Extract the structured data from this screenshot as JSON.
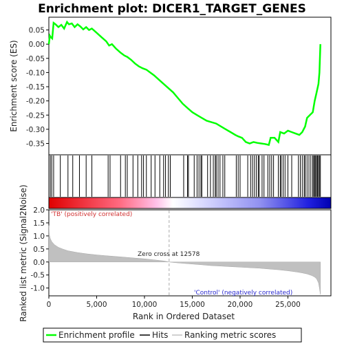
{
  "chart_data": {
    "type": "line",
    "title": "Enrichment plot: DICER1_TARGET_GENES",
    "xlabel": "Rank in Ordered Dataset",
    "xlim": [
      0,
      29500
    ],
    "x_ticks": [
      0,
      5000,
      10000,
      15000,
      20000,
      25000
    ],
    "x_tick_labels": [
      "0",
      "5,000",
      "10,000",
      "15,000",
      "20,000",
      "25,000"
    ],
    "es_panel": {
      "ylabel": "Enrichment score (ES)",
      "ylim": [
        -0.39,
        0.095
      ],
      "y_ticks": [
        0.05,
        0.0,
        -0.05,
        -0.1,
        -0.15,
        -0.2,
        -0.25,
        -0.3,
        -0.35
      ],
      "y_tick_labels": [
        "0.05",
        "0.00",
        "-0.05",
        "-0.10",
        "-0.15",
        "-0.20",
        "-0.25",
        "-0.30",
        "-0.35"
      ],
      "series_name": "Enrichment profile",
      "color": "#00ff00",
      "x": [
        0,
        100,
        200,
        350,
        500,
        700,
        1000,
        1300,
        1600,
        1900,
        2100,
        2400,
        2700,
        3000,
        3300,
        3600,
        3900,
        4200,
        4500,
        5000,
        5500,
        6000,
        6300,
        6600,
        7000,
        7500,
        7900,
        8200,
        8600,
        9000,
        9400,
        9800,
        10200,
        10600,
        11000,
        11500,
        12000,
        12500,
        13000,
        13500,
        14000,
        14500,
        15000,
        15500,
        16000,
        16500,
        17000,
        17500,
        18000,
        18500,
        19000,
        19500,
        19800,
        20200,
        20600,
        21000,
        21400,
        21800,
        22200,
        22600,
        23000,
        23200,
        23600,
        24000,
        24200,
        24600,
        25000,
        25400,
        25800,
        26200,
        26500,
        26800,
        27000,
        27300,
        27600,
        27800,
        28000,
        28200,
        28300,
        28400
      ],
      "y": [
        0.0,
        0.03,
        0.025,
        0.02,
        0.075,
        0.07,
        0.06,
        0.068,
        0.055,
        0.078,
        0.07,
        0.073,
        0.06,
        0.07,
        0.062,
        0.052,
        0.06,
        0.05,
        0.055,
        0.04,
        0.025,
        0.01,
        -0.005,
        0.0,
        -0.015,
        -0.03,
        -0.04,
        -0.045,
        -0.055,
        -0.068,
        -0.078,
        -0.085,
        -0.09,
        -0.1,
        -0.11,
        -0.125,
        -0.14,
        -0.155,
        -0.17,
        -0.19,
        -0.21,
        -0.225,
        -0.24,
        -0.25,
        -0.26,
        -0.27,
        -0.275,
        -0.28,
        -0.29,
        -0.3,
        -0.31,
        -0.32,
        -0.325,
        -0.33,
        -0.345,
        -0.35,
        -0.345,
        -0.348,
        -0.35,
        -0.352,
        -0.355,
        -0.33,
        -0.33,
        -0.345,
        -0.31,
        -0.315,
        -0.305,
        -0.31,
        -0.315,
        -0.32,
        -0.31,
        -0.29,
        -0.26,
        -0.25,
        -0.24,
        -0.2,
        -0.17,
        -0.14,
        -0.1,
        0.0
      ]
    },
    "hits_panel": {
      "series_name": "Hits",
      "hit_positions": [
        150,
        300,
        500,
        1200,
        2000,
        2500,
        3200,
        3900,
        4500,
        6200,
        6400,
        7500,
        8000,
        8200,
        8800,
        9300,
        9700,
        9900,
        10200,
        10700,
        11100,
        11600,
        12000,
        12200,
        12500,
        12700,
        14100,
        14500,
        14600,
        15200,
        15500,
        15700,
        15900,
        16000,
        16600,
        16900,
        17200,
        17400,
        17500,
        17700,
        17900,
        18200,
        18400,
        19600,
        19800,
        20000,
        20800,
        21100,
        21300,
        21500,
        21700,
        21900,
        22000,
        22300,
        22500,
        22900,
        23100,
        23300,
        23500,
        24000,
        24200,
        24300,
        24500,
        24700,
        25000,
        25400,
        26100,
        26300,
        26500,
        26700,
        26800,
        27000,
        27200,
        27400,
        27600,
        27700,
        27800,
        27900,
        28000,
        28100,
        28200,
        28300,
        28400
      ]
    },
    "metric_panel": {
      "ylabel": "Ranked list metric (Signal2Noise)",
      "ylim": [
        -1.3,
        2.0
      ],
      "y_ticks": [
        2.0,
        1.5,
        1.0,
        0.5,
        0.0,
        -0.5,
        -1.0
      ],
      "y_tick_labels": [
        "2.0",
        "1.5",
        "1.0",
        "0.5",
        "0.0",
        "-0.5",
        "-1.0"
      ],
      "series_name": "Ranking metric scores",
      "color": "#c0c0c0",
      "x": [
        0,
        50,
        150,
        300,
        600,
        1000,
        1500,
        2000,
        3000,
        4000,
        5000,
        6000,
        7000,
        8000,
        9000,
        10000,
        11000,
        12000,
        12578,
        13000,
        14000,
        15000,
        16000,
        17000,
        18000,
        19000,
        20000,
        21000,
        22000,
        23000,
        24000,
        25000,
        26000,
        26500,
        27000,
        27500,
        27800,
        28000,
        28200,
        28300,
        28400
      ],
      "y": [
        1.4,
        1.05,
        0.9,
        0.78,
        0.66,
        0.56,
        0.49,
        0.43,
        0.36,
        0.31,
        0.27,
        0.24,
        0.21,
        0.18,
        0.15,
        0.12,
        0.08,
        0.04,
        0.0,
        -0.02,
        -0.05,
        -0.08,
        -0.11,
        -0.14,
        -0.16,
        -0.18,
        -0.2,
        -0.22,
        -0.24,
        -0.27,
        -0.3,
        -0.34,
        -0.39,
        -0.42,
        -0.46,
        -0.52,
        -0.58,
        -0.65,
        -0.8,
        -1.0,
        -1.25
      ]
    },
    "annotations": {
      "positive_label": "'TB' (positively correlated)",
      "negative_label": "'Control' (negatively correlated)",
      "zero_cross": "Zero cross at 12578",
      "zero_cross_x": 12578
    },
    "legend": {
      "placement": "bottom",
      "entries": [
        {
          "label": "Enrichment profile",
          "color": "#00ff00"
        },
        {
          "label": "Hits",
          "color": "#000000"
        },
        {
          "label": "Ranking metric scores",
          "color": "#c0c0c0"
        }
      ]
    }
  }
}
